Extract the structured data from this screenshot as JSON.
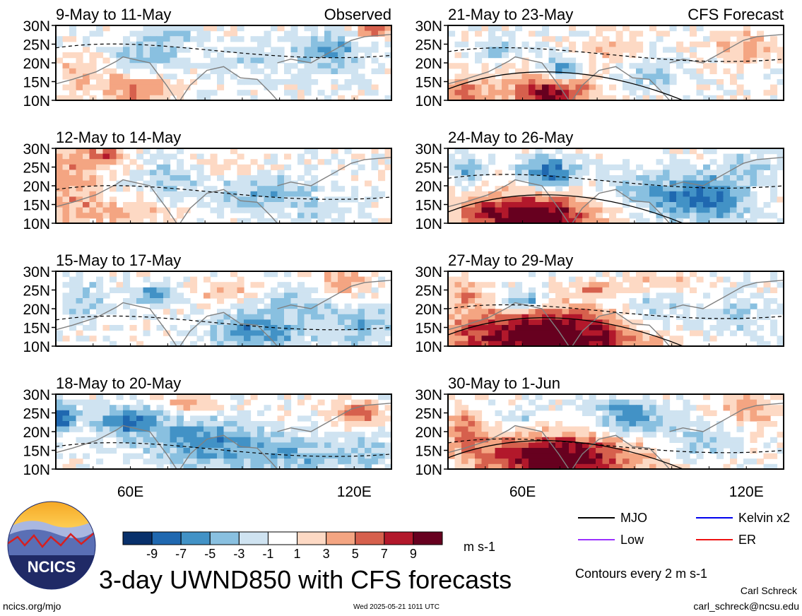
{
  "chart_data": {
    "type": "heatmap",
    "title": "3-day UWND850 with CFS forecasts",
    "observed_label": "Observed",
    "forecast_label": "CFS Forecast",
    "panels": [
      {
        "title": "9-May to 11-May",
        "column": "left",
        "row": 0
      },
      {
        "title": "12-May to 14-May",
        "column": "left",
        "row": 1
      },
      {
        "title": "15-May to 17-May",
        "column": "left",
        "row": 2
      },
      {
        "title": "18-May to 20-May",
        "column": "left",
        "row": 3
      },
      {
        "title": "21-May to 23-May",
        "column": "right",
        "row": 0
      },
      {
        "title": "24-May to 26-May",
        "column": "right",
        "row": 1
      },
      {
        "title": "27-May to 29-May",
        "column": "right",
        "row": 2
      },
      {
        "title": "30-May to 1-Jun",
        "column": "right",
        "row": 3
      }
    ],
    "y_ticks": [
      "30N",
      "25N",
      "20N",
      "15N",
      "10N"
    ],
    "x_ticks": [
      "60E",
      "120E"
    ],
    "x_range": [
      40,
      130
    ],
    "y_range": [
      10,
      30
    ],
    "colorbar": {
      "labels": [
        "-9",
        "-7",
        "-5",
        "-3",
        "-1",
        "1",
        "3",
        "5",
        "7",
        "9"
      ],
      "colors": [
        "#08306b",
        "#1f68b0",
        "#4292c6",
        "#89c0e0",
        "#cfe3f1",
        "#ffffff",
        "#fdd9c4",
        "#f4a582",
        "#d6604d",
        "#b2182b",
        "#67001f"
      ],
      "unit": "m s-1"
    },
    "contour_legend": [
      {
        "label": "MJO",
        "color": "#000000"
      },
      {
        "label": "Kelvin x2",
        "color": "#0000ee"
      },
      {
        "label": "Low",
        "color": "#9b30ff"
      },
      {
        "label": "ER",
        "color": "#ee1111"
      }
    ],
    "contour_note": "Contours every 2 m s-1"
  },
  "footer": {
    "url": "ncics.org/mjo",
    "timestamp": "Wed 2025-05-21 1011 UTC",
    "author": "Carl Schreck",
    "email": "carl_schreck@ncsu.edu",
    "logo_text": "NCICS"
  }
}
